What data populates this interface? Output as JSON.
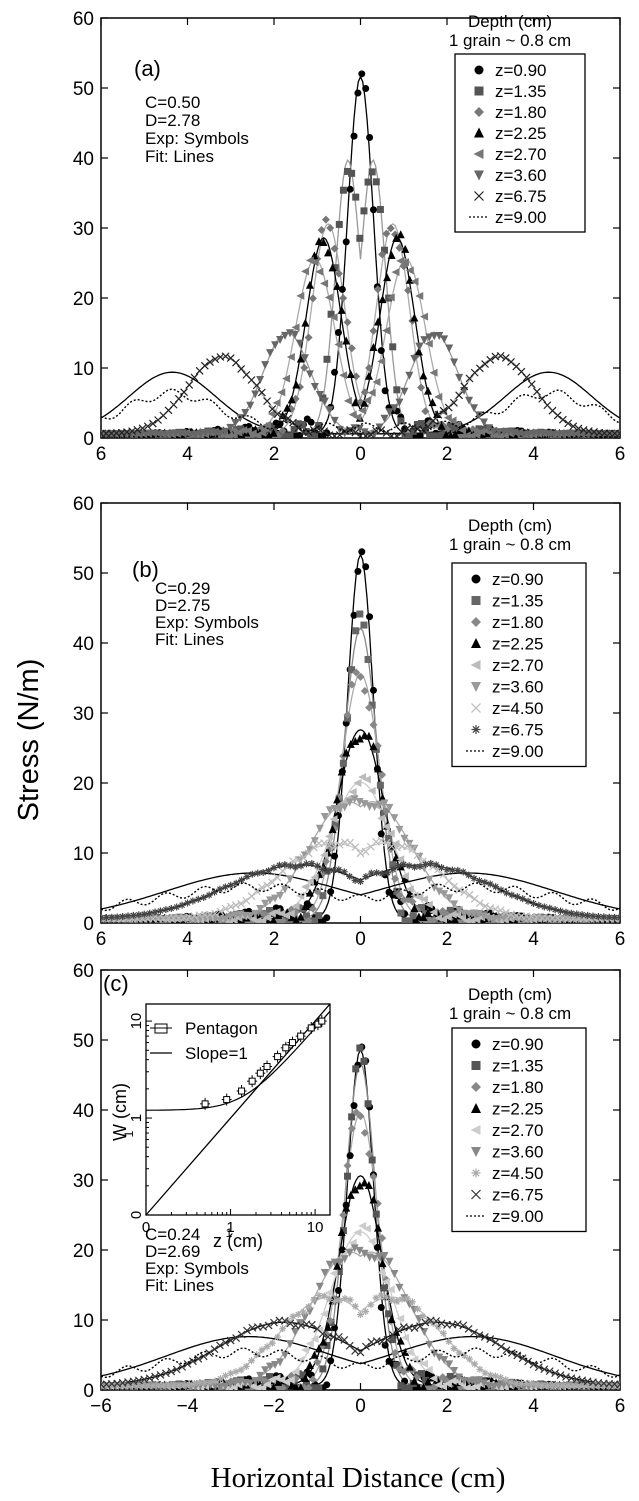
{
  "figure": {
    "ylabel": "Stress (N/m)",
    "xlabel": "Horizontal Distance (cm)"
  },
  "chart_data": [
    {
      "type": "line",
      "panel_label": "(a)",
      "legend_title": [
        "Depth (cm)",
        "1 grain ~ 0.8 cm"
      ],
      "params": [
        "C=0.50",
        "D=2.78",
        "Exp: Symbols",
        "Fit:  Lines"
      ],
      "ylim": [
        0,
        60
      ],
      "xlim": [
        -6,
        6
      ],
      "yticks": [
        "0",
        "10",
        "20",
        "30",
        "40",
        "50",
        "60"
      ],
      "xticks": [
        "6",
        "4",
        "2",
        "0",
        "2",
        "4",
        "6"
      ],
      "legend_position": "top-right",
      "series": [
        {
          "name": "z=0.90",
          "marker": "circle",
          "color": "#000000",
          "amp": 51,
          "split": 0.0,
          "width": 0.3,
          "fit": "#000000"
        },
        {
          "name": "z=1.35",
          "marker": "square",
          "color": "#555555",
          "amp": 38.5,
          "split": 0.3,
          "width": 0.28,
          "fit": "#999999"
        },
        {
          "name": "z=1.80",
          "marker": "diamond",
          "color": "#777777",
          "amp": 30,
          "split": 0.75,
          "width": 0.38,
          "fit": "#aaaaaa"
        },
        {
          "name": "z=2.25",
          "marker": "triangle",
          "color": "#000000",
          "amp": 28,
          "split": 0.85,
          "width": 0.4,
          "fit": "#000000"
        },
        {
          "name": "z=2.70",
          "marker": "tri-left",
          "color": "#777777",
          "amp": 25,
          "split": 1.05,
          "width": 0.45,
          "fit": "#aaaaaa"
        },
        {
          "name": "z=3.60",
          "marker": "tri-down",
          "color": "#666666",
          "amp": 14.5,
          "split": 1.7,
          "width": 0.55,
          "fit": "#999999"
        },
        {
          "name": "z=6.75",
          "marker": "cross",
          "color": "#222222",
          "amp": 11,
          "split": 3.2,
          "width": 0.8,
          "fit": "#aaaaaa"
        },
        {
          "name": "z=9.00",
          "marker": "dotted",
          "color": "#000000",
          "amp": 8.8,
          "split": 4.35,
          "width": 1.0,
          "fit": "#000000"
        }
      ]
    },
    {
      "type": "line",
      "panel_label": "(b)",
      "legend_title": [
        "Depth (cm)",
        "1 grain ~ 0.8 cm"
      ],
      "params": [
        "C=0.29",
        "D=2.75",
        "Exp: Symbols",
        "Fit:  Lines"
      ],
      "ylim": [
        0,
        60
      ],
      "xlim": [
        -6,
        6
      ],
      "yticks": [
        "0",
        "10",
        "20",
        "30",
        "40",
        "50",
        "60"
      ],
      "xticks": [
        "6",
        "4",
        "2",
        "0",
        "2",
        "4",
        "6"
      ],
      "legend_position": "top-right",
      "series": [
        {
          "name": "z=0.90",
          "marker": "circle",
          "color": "#000000",
          "amp": 52,
          "split": 0.0,
          "width": 0.3,
          "fit": "#000000"
        },
        {
          "name": "z=1.35",
          "marker": "square",
          "color": "#666666",
          "amp": 41.5,
          "split": 0.0,
          "width": 0.38,
          "fit": "#888888"
        },
        {
          "name": "z=1.80",
          "marker": "diamond",
          "color": "#888888",
          "amp": 35,
          "split": 0.0,
          "width": 0.45,
          "fit": "#aaaaaa"
        },
        {
          "name": "z=2.25",
          "marker": "triangle",
          "color": "#000000",
          "amp": 27,
          "split": 0.0,
          "width": 0.55,
          "fit": "#000000"
        },
        {
          "name": "z=2.70",
          "marker": "tri-left",
          "color": "#bbbbbb",
          "amp": 19.5,
          "split": 0.0,
          "width": 0.7,
          "fit": "#cccccc"
        },
        {
          "name": "z=3.60",
          "marker": "tri-down",
          "color": "#999999",
          "amp": 15,
          "split": 0.35,
          "width": 0.9,
          "fit": "#aaaaaa"
        },
        {
          "name": "z=4.50",
          "marker": "cross",
          "color": "#bbbbbb",
          "amp": 10,
          "split": 0.7,
          "width": 1.2,
          "fit": "#cccccc"
        },
        {
          "name": "z=6.75",
          "marker": "star",
          "color": "#444444",
          "amp": 7.5,
          "split": 1.5,
          "width": 1.6,
          "fit": "#000000"
        },
        {
          "name": "z=9.00",
          "marker": "dotted",
          "color": "#000000",
          "amp": 6.5,
          "split": 2.5,
          "width": 2.0,
          "fit": "#000000"
        }
      ]
    },
    {
      "type": "line",
      "panel_label": "(c)",
      "legend_title": [
        "Depth (cm)",
        "1 grain ~ 0.8 cm"
      ],
      "params": [
        "C=0.24",
        "D=2.69",
        "Exp: Symbols",
        "Fit:  Lines"
      ],
      "ylim": [
        0,
        60
      ],
      "xlim": [
        -6,
        6
      ],
      "yticks": [
        "0",
        "10",
        "20",
        "30",
        "40",
        "50",
        "60"
      ],
      "xticks": [
        "−6",
        "−4",
        "−2",
        "0",
        "2",
        "4",
        "6"
      ],
      "legend_position": "top-right",
      "series": [
        {
          "name": "z=0.90",
          "marker": "circle",
          "color": "#000000",
          "amp": 48,
          "split": 0.0,
          "width": 0.3,
          "fit": "#000000"
        },
        {
          "name": "z=1.35",
          "marker": "square",
          "color": "#555555",
          "amp": 46,
          "split": 0.0,
          "width": 0.35,
          "fit": "#888888"
        },
        {
          "name": "z=1.80",
          "marker": "diamond",
          "color": "#888888",
          "amp": 39,
          "split": 0.0,
          "width": 0.42,
          "fit": "#aaaaaa"
        },
        {
          "name": "z=2.25",
          "marker": "triangle",
          "color": "#000000",
          "amp": 30,
          "split": 0.0,
          "width": 0.5,
          "fit": "#000000"
        },
        {
          "name": "z=2.70",
          "marker": "tri-left",
          "color": "#cccccc",
          "amp": 22,
          "split": 0.0,
          "width": 0.7,
          "fit": "#cccccc"
        },
        {
          "name": "z=3.60",
          "marker": "tri-down",
          "color": "#888888",
          "amp": 17,
          "split": 0.3,
          "width": 0.9,
          "fit": "#aaaaaa"
        },
        {
          "name": "z=4.50",
          "marker": "star",
          "color": "#aaaaaa",
          "amp": 12,
          "split": 0.8,
          "width": 1.1,
          "fit": "#bbbbbb"
        },
        {
          "name": "z=6.75",
          "marker": "cross",
          "color": "#333333",
          "amp": 9,
          "split": 1.8,
          "width": 1.5,
          "fit": "#000000"
        },
        {
          "name": "z=9.00",
          "marker": "dotted",
          "color": "#000000",
          "amp": 7,
          "split": 2.6,
          "width": 1.9,
          "fit": "#000000"
        }
      ],
      "inset": {
        "type": "scatter",
        "xlabel": "z (cm)",
        "ylabel": "W (cm)",
        "xlabel_sup": "1",
        "ylabel_sub": "1",
        "scale": "log-log",
        "xticks": [
          "0",
          "1",
          "10"
        ],
        "yticks": [
          "0",
          "1",
          "10"
        ],
        "legend": [
          "Pentagon",
          "Slope=1"
        ],
        "points": [
          {
            "x": 0.5,
            "y": 1.4
          },
          {
            "x": 0.9,
            "y": 1.55
          },
          {
            "x": 1.35,
            "y": 1.9
          },
          {
            "x": 1.8,
            "y": 2.4
          },
          {
            "x": 2.25,
            "y": 2.9
          },
          {
            "x": 2.7,
            "y": 3.4
          },
          {
            "x": 3.6,
            "y": 4.3
          },
          {
            "x": 4.5,
            "y": 5.3
          },
          {
            "x": 5.4,
            "y": 6.0
          },
          {
            "x": 6.75,
            "y": 7.0
          },
          {
            "x": 9.0,
            "y": 8.5
          },
          {
            "x": 10.8,
            "y": 9.3
          },
          {
            "x": 12.0,
            "y": 10.0
          }
        ]
      }
    }
  ]
}
